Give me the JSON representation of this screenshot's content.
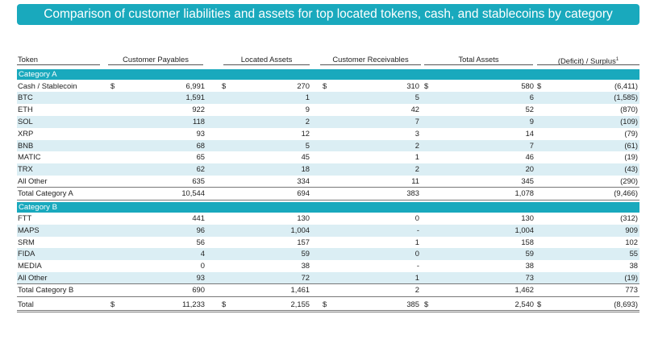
{
  "title": "Comparison of customer liabilities and assets for top located tokens, cash, and stablecoins by category",
  "columns": [
    "Token",
    "Customer Payables",
    "Located Assets",
    "Customer Receivables",
    "Total Assets",
    "(Deficit) / Surplus"
  ],
  "footnote_mark": "1",
  "currency_symbol": "$",
  "category_a": {
    "label": "Category A",
    "rows": [
      {
        "token": "Cash / Stablecoin",
        "payables": "6,991",
        "located": "270",
        "receivables": "310",
        "total": "580",
        "deficit": "(6,411)",
        "dollar": true
      },
      {
        "token": "BTC",
        "payables": "1,591",
        "located": "1",
        "receivables": "5",
        "total": "6",
        "deficit": "(1,585)"
      },
      {
        "token": "ETH",
        "payables": "922",
        "located": "9",
        "receivables": "42",
        "total": "52",
        "deficit": "(870)"
      },
      {
        "token": "SOL",
        "payables": "118",
        "located": "2",
        "receivables": "7",
        "total": "9",
        "deficit": "(109)"
      },
      {
        "token": "XRP",
        "payables": "93",
        "located": "12",
        "receivables": "3",
        "total": "14",
        "deficit": "(79)"
      },
      {
        "token": "BNB",
        "payables": "68",
        "located": "5",
        "receivables": "2",
        "total": "7",
        "deficit": "(61)"
      },
      {
        "token": "MATIC",
        "payables": "65",
        "located": "45",
        "receivables": "1",
        "total": "46",
        "deficit": "(19)"
      },
      {
        "token": "TRX",
        "payables": "62",
        "located": "18",
        "receivables": "2",
        "total": "20",
        "deficit": "(43)"
      },
      {
        "token": "All Other",
        "payables": "635",
        "located": "334",
        "receivables": "11",
        "total": "345",
        "deficit": "(290)"
      }
    ],
    "total": {
      "token": "Total Category A",
      "payables": "10,544",
      "located": "694",
      "receivables": "383",
      "total": "1,078",
      "deficit": "(9,466)"
    }
  },
  "category_b": {
    "label": "Category B",
    "rows": [
      {
        "token": "FTT",
        "payables": "441",
        "located": "130",
        "receivables": "0",
        "total": "130",
        "deficit": "(312)"
      },
      {
        "token": "MAPS",
        "payables": "96",
        "located": "1,004",
        "receivables": "-",
        "total": "1,004",
        "deficit": "909"
      },
      {
        "token": "SRM",
        "payables": "56",
        "located": "157",
        "receivables": "1",
        "total": "158",
        "deficit": "102"
      },
      {
        "token": "FIDA",
        "payables": "4",
        "located": "59",
        "receivables": "0",
        "total": "59",
        "deficit": "55"
      },
      {
        "token": "MEDIA",
        "payables": "0",
        "located": "38",
        "receivables": "-",
        "total": "38",
        "deficit": "38"
      },
      {
        "token": "All Other",
        "payables": "93",
        "located": "72",
        "receivables": "1",
        "total": "73",
        "deficit": "(19)"
      }
    ],
    "total": {
      "token": "Total Category B",
      "payables": "690",
      "located": "1,461",
      "receivables": "2",
      "total": "1,462",
      "deficit": "773"
    }
  },
  "grand_total": {
    "token": "Total",
    "payables": "11,233",
    "located": "2,155",
    "receivables": "385",
    "total": "2,540",
    "deficit": "(8,693)"
  },
  "colors": {
    "accent": "#19a9bd",
    "stripe": "#dbeef4"
  }
}
